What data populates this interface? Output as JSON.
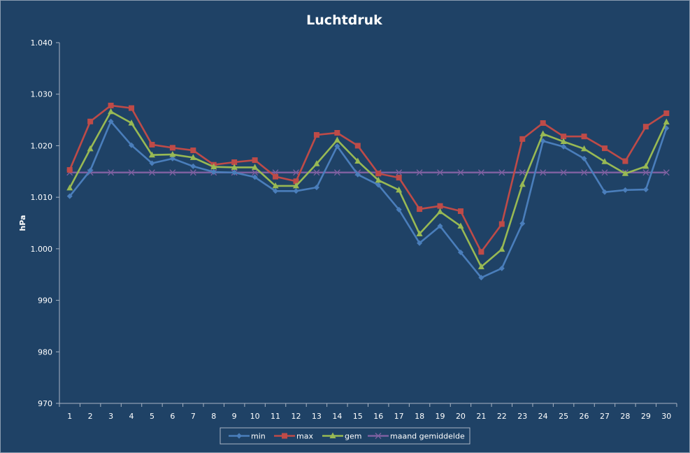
{
  "chart_data": {
    "type": "line",
    "title": "Luchtdruk",
    "xlabel": "",
    "ylabel": "hPa",
    "ylim": [
      970,
      1040
    ],
    "yticks": [
      970,
      980,
      990,
      1000,
      1010,
      1020,
      1030,
      1040
    ],
    "ytick_labels": [
      "970",
      "980",
      "990",
      "1.000",
      "1.010",
      "1.020",
      "1.030",
      "1.040"
    ],
    "categories": [
      "1",
      "2",
      "3",
      "4",
      "5",
      "6",
      "7",
      "8",
      "9",
      "10",
      "11",
      "12",
      "13",
      "14",
      "15",
      "16",
      "17",
      "18",
      "19",
      "20",
      "21",
      "22",
      "23",
      "24",
      "25",
      "26",
      "27",
      "28",
      "29",
      "30"
    ],
    "grid": false,
    "legend_position": "bottom",
    "series": [
      {
        "name": "min",
        "color": "#4a7ebb",
        "marker": "diamond",
        "values": [
          1010.2,
          1015.2,
          1024.7,
          1020.1,
          1016.6,
          1017.5,
          1016.0,
          1014.9,
          1014.8,
          1013.9,
          1011.2,
          1011.2,
          1011.9,
          1019.9,
          1014.4,
          1012.4,
          1007.6,
          1001.1,
          1004.4,
          999.3,
          994.4,
          996.2,
          1004.9,
          1020.9,
          1019.8,
          1017.5,
          1011.0,
          1011.4,
          1011.5,
          1023.4
        ]
      },
      {
        "name": "max",
        "color": "#be4b48",
        "marker": "square",
        "values": [
          1015.3,
          1024.7,
          1027.8,
          1027.3,
          1020.2,
          1019.6,
          1019.1,
          1016.3,
          1016.8,
          1017.2,
          1014.0,
          1013.1,
          1022.1,
          1022.5,
          1020.0,
          1014.6,
          1013.8,
          1007.7,
          1008.3,
          1007.3,
          999.4,
          1004.8,
          1021.3,
          1024.4,
          1021.8,
          1021.8,
          1019.5,
          1017.0,
          1023.7,
          1026.3
        ]
      },
      {
        "name": "gem",
        "color": "#98b954",
        "marker": "triangle",
        "values": [
          1011.8,
          1019.4,
          1026.6,
          1024.4,
          1018.2,
          1018.3,
          1017.7,
          1015.9,
          1015.8,
          1015.8,
          1012.2,
          1012.2,
          1016.5,
          1021.1,
          1017.0,
          1013.3,
          1011.4,
          1002.9,
          1007.2,
          1004.4,
          996.5,
          999.9,
          1012.5,
          1022.3,
          1020.8,
          1019.4,
          1016.9,
          1014.6,
          1016.0,
          1024.6
        ]
      },
      {
        "name": "maand gemiddelde",
        "color": "#7d60a0",
        "marker": "x",
        "values": [
          1014.8,
          1014.8,
          1014.8,
          1014.8,
          1014.8,
          1014.8,
          1014.8,
          1014.8,
          1014.8,
          1014.8,
          1014.8,
          1014.8,
          1014.8,
          1014.8,
          1014.8,
          1014.8,
          1014.8,
          1014.8,
          1014.8,
          1014.8,
          1014.8,
          1014.8,
          1014.8,
          1014.8,
          1014.8,
          1014.8,
          1014.8,
          1014.8,
          1014.8,
          1014.8
        ]
      }
    ]
  }
}
